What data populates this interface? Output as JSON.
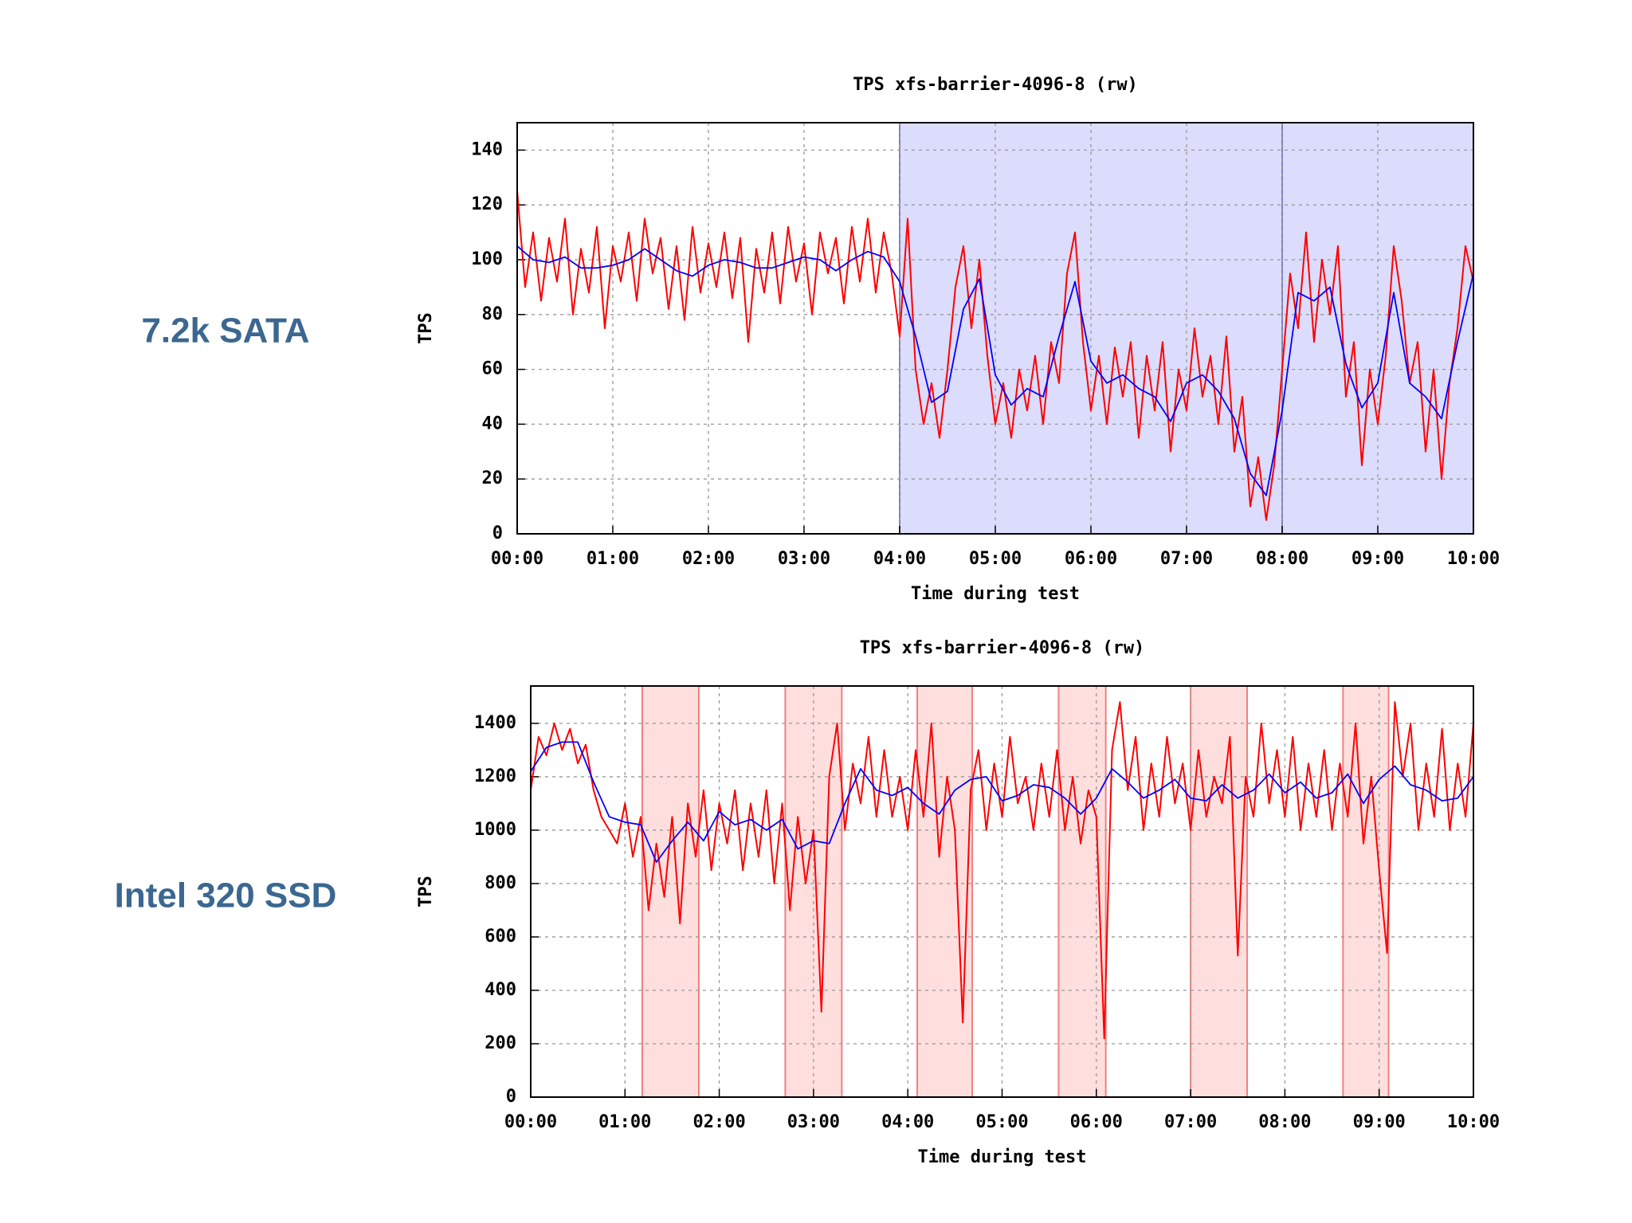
{
  "chart_data": [
    {
      "type": "line",
      "row_label": "7.2k SATA",
      "title": "TPS xfs-barrier-4096-8 (rw)",
      "x_label": "Time during test",
      "y_label": "TPS",
      "xlim": [
        0,
        600
      ],
      "ylim": [
        0,
        150
      ],
      "grid": true,
      "xticks": [
        {
          "value": 0,
          "label": "00:00"
        },
        {
          "value": 60,
          "label": "01:00"
        },
        {
          "value": 120,
          "label": "02:00"
        },
        {
          "value": 180,
          "label": "03:00"
        },
        {
          "value": 240,
          "label": "04:00"
        },
        {
          "value": 300,
          "label": "05:00"
        },
        {
          "value": 360,
          "label": "06:00"
        },
        {
          "value": 420,
          "label": "07:00"
        },
        {
          "value": 480,
          "label": "08:00"
        },
        {
          "value": 540,
          "label": "09:00"
        },
        {
          "value": 600,
          "label": "10:00"
        }
      ],
      "yticks": [
        0,
        20,
        40,
        60,
        80,
        100,
        120,
        140
      ],
      "spans": [
        {
          "from": 240,
          "to": 480,
          "color": "#dcdcfc",
          "edge": "#8080c0"
        },
        {
          "from": 480,
          "to": 600,
          "color": "#dcdcfc",
          "edge": "#8080c0"
        }
      ],
      "series": [
        {
          "color": "#ff0000",
          "x": [
            0,
            5,
            10,
            15,
            20,
            25,
            30,
            35,
            40,
            45,
            50,
            55,
            60,
            65,
            70,
            75,
            80,
            85,
            90,
            95,
            100,
            105,
            110,
            115,
            120,
            125,
            130,
            135,
            140,
            145,
            150,
            155,
            160,
            165,
            170,
            175,
            180,
            185,
            190,
            195,
            200,
            205,
            210,
            215,
            220,
            225,
            230,
            235,
            240,
            245,
            250,
            255,
            260,
            265,
            270,
            275,
            280,
            285,
            290,
            295,
            300,
            305,
            310,
            315,
            320,
            325,
            330,
            335,
            340,
            345,
            350,
            355,
            360,
            365,
            370,
            375,
            380,
            385,
            390,
            395,
            400,
            405,
            410,
            415,
            420,
            425,
            430,
            435,
            440,
            445,
            450,
            455,
            460,
            465,
            470,
            475,
            480,
            485,
            490,
            495,
            500,
            505,
            510,
            515,
            520,
            525,
            530,
            535,
            540,
            545,
            550,
            555,
            560,
            565,
            570,
            575,
            580,
            585,
            590,
            595,
            600
          ],
          "values": [
            125,
            90,
            110,
            85,
            108,
            92,
            115,
            80,
            104,
            88,
            112,
            75,
            105,
            92,
            110,
            85,
            115,
            95,
            108,
            82,
            105,
            78,
            112,
            88,
            106,
            90,
            110,
            86,
            108,
            70,
            104,
            88,
            110,
            84,
            112,
            92,
            106,
            80,
            110,
            95,
            108,
            84,
            112,
            92,
            115,
            88,
            110,
            95,
            72,
            115,
            60,
            40,
            55,
            35,
            60,
            90,
            105,
            75,
            100,
            65,
            40,
            55,
            35,
            60,
            45,
            65,
            40,
            70,
            55,
            95,
            110,
            70,
            45,
            65,
            40,
            68,
            50,
            70,
            35,
            65,
            45,
            70,
            30,
            60,
            45,
            75,
            50,
            65,
            40,
            72,
            30,
            50,
            10,
            28,
            5,
            25,
            60,
            95,
            75,
            110,
            70,
            100,
            80,
            105,
            50,
            70,
            25,
            60,
            40,
            65,
            105,
            85,
            55,
            70,
            30,
            60,
            20,
            55,
            75,
            105,
            92
          ]
        },
        {
          "color": "#0000ff",
          "x": [
            0,
            10,
            20,
            30,
            40,
            50,
            60,
            70,
            80,
            90,
            100,
            110,
            120,
            130,
            140,
            150,
            160,
            170,
            180,
            190,
            200,
            210,
            220,
            230,
            240,
            250,
            260,
            270,
            280,
            290,
            300,
            310,
            320,
            330,
            340,
            350,
            360,
            370,
            380,
            390,
            400,
            410,
            420,
            430,
            440,
            450,
            460,
            470,
            480,
            490,
            500,
            510,
            520,
            530,
            540,
            550,
            560,
            570,
            580,
            590,
            600
          ],
          "values": [
            105,
            100,
            99,
            101,
            97,
            97,
            98,
            100,
            104,
            100,
            96,
            94,
            98,
            100,
            99,
            97,
            97,
            99,
            101,
            100,
            96,
            100,
            103,
            101,
            92,
            72,
            48,
            52,
            82,
            93,
            58,
            47,
            53,
            50,
            72,
            92,
            63,
            55,
            58,
            53,
            50,
            41,
            55,
            58,
            52,
            42,
            22,
            14,
            45,
            88,
            85,
            90,
            62,
            46,
            55,
            88,
            55,
            50,
            42,
            70,
            95
          ]
        }
      ]
    },
    {
      "type": "line",
      "row_label": "Intel 320 SSD",
      "title": "TPS xfs-barrier-4096-8 (rw)",
      "x_label": "Time during test",
      "y_label": "TPS",
      "xlim": [
        0,
        600
      ],
      "ylim": [
        0,
        1540
      ],
      "grid": true,
      "xticks": [
        {
          "value": 0,
          "label": "00:00"
        },
        {
          "value": 60,
          "label": "01:00"
        },
        {
          "value": 120,
          "label": "02:00"
        },
        {
          "value": 180,
          "label": "03:00"
        },
        {
          "value": 240,
          "label": "04:00"
        },
        {
          "value": 300,
          "label": "05:00"
        },
        {
          "value": 360,
          "label": "06:00"
        },
        {
          "value": 420,
          "label": "07:00"
        },
        {
          "value": 480,
          "label": "08:00"
        },
        {
          "value": 540,
          "label": "09:00"
        },
        {
          "value": 600,
          "label": "10:00"
        }
      ],
      "yticks": [
        0,
        200,
        400,
        600,
        800,
        1000,
        1200,
        1400
      ],
      "spans": [
        {
          "from": 71,
          "to": 107,
          "color": "#ffdede",
          "edge": "#f08080"
        },
        {
          "from": 162,
          "to": 198,
          "color": "#ffdede",
          "edge": "#f08080"
        },
        {
          "from": 246,
          "to": 281,
          "color": "#ffdede",
          "edge": "#f08080"
        },
        {
          "from": 336,
          "to": 366,
          "color": "#ffdede",
          "edge": "#f08080"
        },
        {
          "from": 420,
          "to": 456,
          "color": "#ffdede",
          "edge": "#f08080"
        },
        {
          "from": 517,
          "to": 546,
          "color": "#ffdede",
          "edge": "#f08080"
        }
      ],
      "series": [
        {
          "color": "#ff0000",
          "x": [
            0,
            5,
            10,
            15,
            20,
            25,
            30,
            35,
            40,
            45,
            50,
            55,
            60,
            65,
            70,
            75,
            80,
            85,
            90,
            95,
            100,
            105,
            110,
            115,
            120,
            125,
            130,
            135,
            140,
            145,
            150,
            155,
            160,
            165,
            170,
            175,
            180,
            185,
            190,
            195,
            200,
            205,
            210,
            215,
            220,
            225,
            230,
            235,
            240,
            245,
            250,
            255,
            260,
            265,
            270,
            275,
            280,
            285,
            290,
            295,
            300,
            305,
            310,
            315,
            320,
            325,
            330,
            335,
            340,
            345,
            350,
            355,
            360,
            365,
            370,
            375,
            380,
            385,
            390,
            395,
            400,
            405,
            410,
            415,
            420,
            425,
            430,
            435,
            440,
            445,
            450,
            455,
            460,
            465,
            470,
            475,
            480,
            485,
            490,
            495,
            500,
            505,
            510,
            515,
            520,
            525,
            530,
            535,
            540,
            545,
            550,
            555,
            560,
            565,
            570,
            575,
            580,
            585,
            590,
            595,
            600
          ],
          "values": [
            1150,
            1350,
            1280,
            1400,
            1300,
            1380,
            1250,
            1320,
            1150,
            1050,
            1000,
            950,
            1100,
            900,
            1050,
            700,
            950,
            750,
            1050,
            650,
            1100,
            900,
            1150,
            850,
            1100,
            950,
            1150,
            850,
            1100,
            900,
            1150,
            800,
            1100,
            700,
            1050,
            800,
            1000,
            320,
            1200,
            1400,
            1000,
            1250,
            1100,
            1350,
            1050,
            1300,
            1050,
            1200,
            1000,
            1300,
            1050,
            1400,
            900,
            1200,
            1000,
            280,
            1150,
            1300,
            1000,
            1250,
            1050,
            1350,
            1100,
            1200,
            1000,
            1250,
            1050,
            1300,
            1000,
            1200,
            950,
            1150,
            1050,
            220,
            1300,
            1480,
            1150,
            1350,
            1000,
            1250,
            1050,
            1350,
            1100,
            1250,
            1000,
            1300,
            1050,
            1200,
            1100,
            1350,
            530,
            1200,
            1050,
            1400,
            1100,
            1300,
            1050,
            1350,
            1000,
            1250,
            1050,
            1300,
            1000,
            1250,
            1050,
            1400,
            950,
            1200,
            850,
            540,
            1480,
            1200,
            1400,
            1000,
            1250,
            1050,
            1380,
            1000,
            1250,
            1050,
            1400
          ]
        },
        {
          "color": "#0000ff",
          "x": [
            0,
            10,
            20,
            30,
            40,
            50,
            60,
            70,
            80,
            90,
            100,
            110,
            120,
            130,
            140,
            150,
            160,
            170,
            180,
            190,
            200,
            210,
            220,
            230,
            240,
            250,
            260,
            270,
            280,
            290,
            300,
            310,
            320,
            330,
            340,
            350,
            360,
            370,
            380,
            390,
            400,
            410,
            420,
            430,
            440,
            450,
            460,
            470,
            480,
            490,
            500,
            510,
            520,
            530,
            540,
            550,
            560,
            570,
            580,
            590,
            600
          ],
          "values": [
            1220,
            1310,
            1330,
            1330,
            1180,
            1050,
            1030,
            1020,
            880,
            960,
            1030,
            960,
            1070,
            1020,
            1040,
            1000,
            1040,
            930,
            960,
            950,
            1100,
            1230,
            1150,
            1130,
            1160,
            1100,
            1060,
            1150,
            1190,
            1200,
            1110,
            1130,
            1170,
            1160,
            1120,
            1060,
            1120,
            1230,
            1180,
            1120,
            1150,
            1190,
            1120,
            1110,
            1170,
            1120,
            1150,
            1210,
            1140,
            1180,
            1120,
            1140,
            1210,
            1100,
            1190,
            1240,
            1170,
            1150,
            1110,
            1120,
            1200
          ]
        }
      ]
    }
  ]
}
